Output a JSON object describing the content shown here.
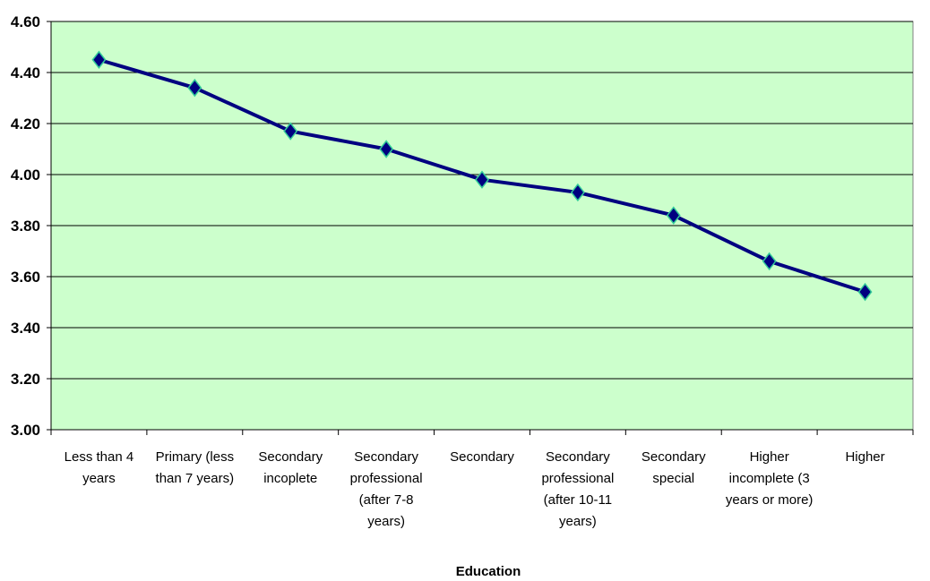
{
  "chart_data": {
    "type": "line",
    "title": "",
    "xlabel": "Education",
    "ylabel": "",
    "categories": [
      [
        "Less than 4",
        "years"
      ],
      [
        "Primary (less",
        "than 7 years)"
      ],
      [
        "Secondary",
        "incoplete"
      ],
      [
        "Secondary",
        "professional",
        "(after 7-8",
        "years)"
      ],
      [
        "Secondary"
      ],
      [
        "Secondary",
        "professional",
        "(after 10-11",
        "years)"
      ],
      [
        "Secondary",
        "special"
      ],
      [
        "Higher",
        "incomplete (3",
        "years or more)"
      ],
      [
        "Higher"
      ]
    ],
    "series": [
      {
        "values": [
          4.45,
          4.34,
          4.17,
          4.1,
          3.98,
          3.93,
          3.84,
          3.66,
          3.54
        ]
      }
    ],
    "ylim": [
      3.0,
      4.6
    ],
    "yticks": [
      3.0,
      3.2,
      3.4,
      3.6,
      3.8,
      4.0,
      4.2,
      4.4,
      4.6
    ],
    "ytick_labels": [
      "3.00",
      "3.20",
      "3.40",
      "3.60",
      "3.80",
      "4.00",
      "4.20",
      "4.40",
      "4.60"
    ],
    "grid": true,
    "legend": "none",
    "colors": {
      "plot_background": "#ccffcc",
      "line": "#000080",
      "marker_fill": "#000080",
      "marker_edge": "#33cc99",
      "gridline": "#000000"
    }
  }
}
